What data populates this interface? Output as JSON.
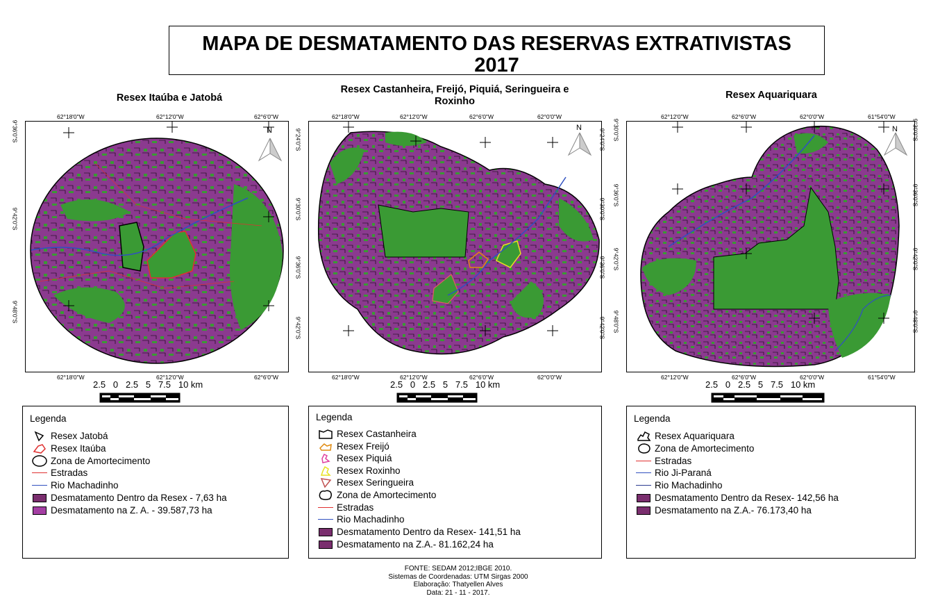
{
  "title": {
    "line1": "MAPA DE DESMATAMENTO DAS RESERVAS EXTRATIVISTAS",
    "line2": "2017"
  },
  "colors": {
    "deforestation": "#8b3a8f",
    "forest": "#3a9a34",
    "road": "#e03030",
    "river": "#3050c0",
    "legend_swatch": "#7a2e6e"
  },
  "maps": [
    {
      "title": "Resex Itaúba e Jatobá",
      "top_coords": [
        "62°18'0\"W",
        "62°12'0\"W",
        "62°6'0\"W"
      ],
      "bottom_coords": [
        "62°18'0\"W",
        "62°12'0\"W",
        "62°6'0\"W"
      ],
      "left_coords": [
        "9°36'0\"S",
        "9°42'0\"S",
        "9°48'0\"S"
      ],
      "right_coords": [],
      "north": "N",
      "scale": "2.5   0   2.5   5   7.5   10 km",
      "legend": {
        "title": "Legenda",
        "items": [
          {
            "label": "Resex Jatobá",
            "symbol": "outline-black"
          },
          {
            "label": "Resex Itaúba",
            "symbol": "outline-red"
          },
          {
            "label": "Zona de Amortecimento",
            "symbol": "circle"
          },
          {
            "label": "Estradas",
            "symbol": "line-red"
          },
          {
            "label": "Rio Machadinho",
            "symbol": "line-blue"
          },
          {
            "label": "Desmatamento Dentro da Resex - 7,63 ha",
            "symbol": "swatch-dark"
          },
          {
            "label": "Desmatamento na Z. A. - 39.587,73 ha",
            "symbol": "swatch-light"
          }
        ]
      }
    },
    {
      "title": "Resex Castanheira, Freijó, Piquiá, Seringueira e Roxinho",
      "top_coords": [
        "62°18'0\"W",
        "62°12'0\"W",
        "62°6'0\"W",
        "62°0'0\"W"
      ],
      "bottom_coords": [
        "62°18'0\"W",
        "62°12'0\"W",
        "62°6'0\"W",
        "62°0'0\"W"
      ],
      "left_coords": [
        "9°24'0\"S",
        "9°30'0\"S",
        "9°36'0\"S",
        "9°42'0\"S"
      ],
      "right_coords": [
        "9°24'0\"S",
        "9°30'0\"S",
        "9°36'0\"S",
        "9°42'0\"S"
      ],
      "north": "N",
      "scale": "2.5   0   2.5   5   7.5   10 km",
      "legend": {
        "title": "Legenda",
        "items": [
          {
            "label": "Resex Castanheira",
            "symbol": "outline-black"
          },
          {
            "label": "Resex Freijó",
            "symbol": "outline-orange"
          },
          {
            "label": "Resex Piquiá",
            "symbol": "outline-pink"
          },
          {
            "label": "Resex Roxinho",
            "symbol": "outline-yellow"
          },
          {
            "label": "Resex Seringueira",
            "symbol": "outline-red"
          },
          {
            "label": "Zona de Amortecimento",
            "symbol": "circle"
          },
          {
            "label": "Estradas",
            "symbol": "line-red"
          },
          {
            "label": "Rio Machadinho",
            "symbol": "line-blue"
          },
          {
            "label": "Desmatamento Dentro da Resex- 141,51 ha",
            "symbol": "swatch-dark"
          },
          {
            "label": "Desmatamento na Z.A.- 81.162,24 ha",
            "symbol": "swatch-dark"
          }
        ]
      }
    },
    {
      "title": "Resex Aquariquara",
      "top_coords": [
        "62°12'0\"W",
        "62°6'0\"W",
        "62°0'0\"W",
        "61°54'0\"W"
      ],
      "bottom_coords": [
        "62°12'0\"W",
        "62°6'0\"W",
        "62°0'0\"W",
        "61°54'0\"W"
      ],
      "left_coords": [
        "9°30'0\"S",
        "9°36'0\"S",
        "9°42'0\"S",
        "9°48'0\"S"
      ],
      "right_coords": [
        "9°30'0\"S",
        "9°36'0\"S",
        "9°42'0\"S",
        "9°48'0\"S"
      ],
      "north": "N",
      "scale": "2.5   0   2.5   5   7.5   10 km",
      "legend": {
        "title": "Legenda",
        "items": [
          {
            "label": "Resex Aquariquara",
            "symbol": "outline-black"
          },
          {
            "label": "Zona de Amortecimento",
            "symbol": "circle"
          },
          {
            "label": "Estradas",
            "symbol": "line-red"
          },
          {
            "label": "Rio Ji-Paraná",
            "symbol": "line-blue"
          },
          {
            "label": "Rio Machadinho",
            "symbol": "line-blue"
          },
          {
            "label": "Desmatamento Dentro da Resex- 142,56 ha",
            "symbol": "swatch-dark"
          },
          {
            "label": "Desmatamento na Z.A.- 76.173,40 ha",
            "symbol": "swatch-dark"
          }
        ]
      }
    }
  ],
  "source": [
    "FONTE:  SEDAM 2012;IBGE 2010.",
    "Sistemas de Coordenadas: UTM Sirgas 2000",
    "Elaboração: Thatyellen Alves",
    "Data: 21 - 11 - 2017."
  ]
}
